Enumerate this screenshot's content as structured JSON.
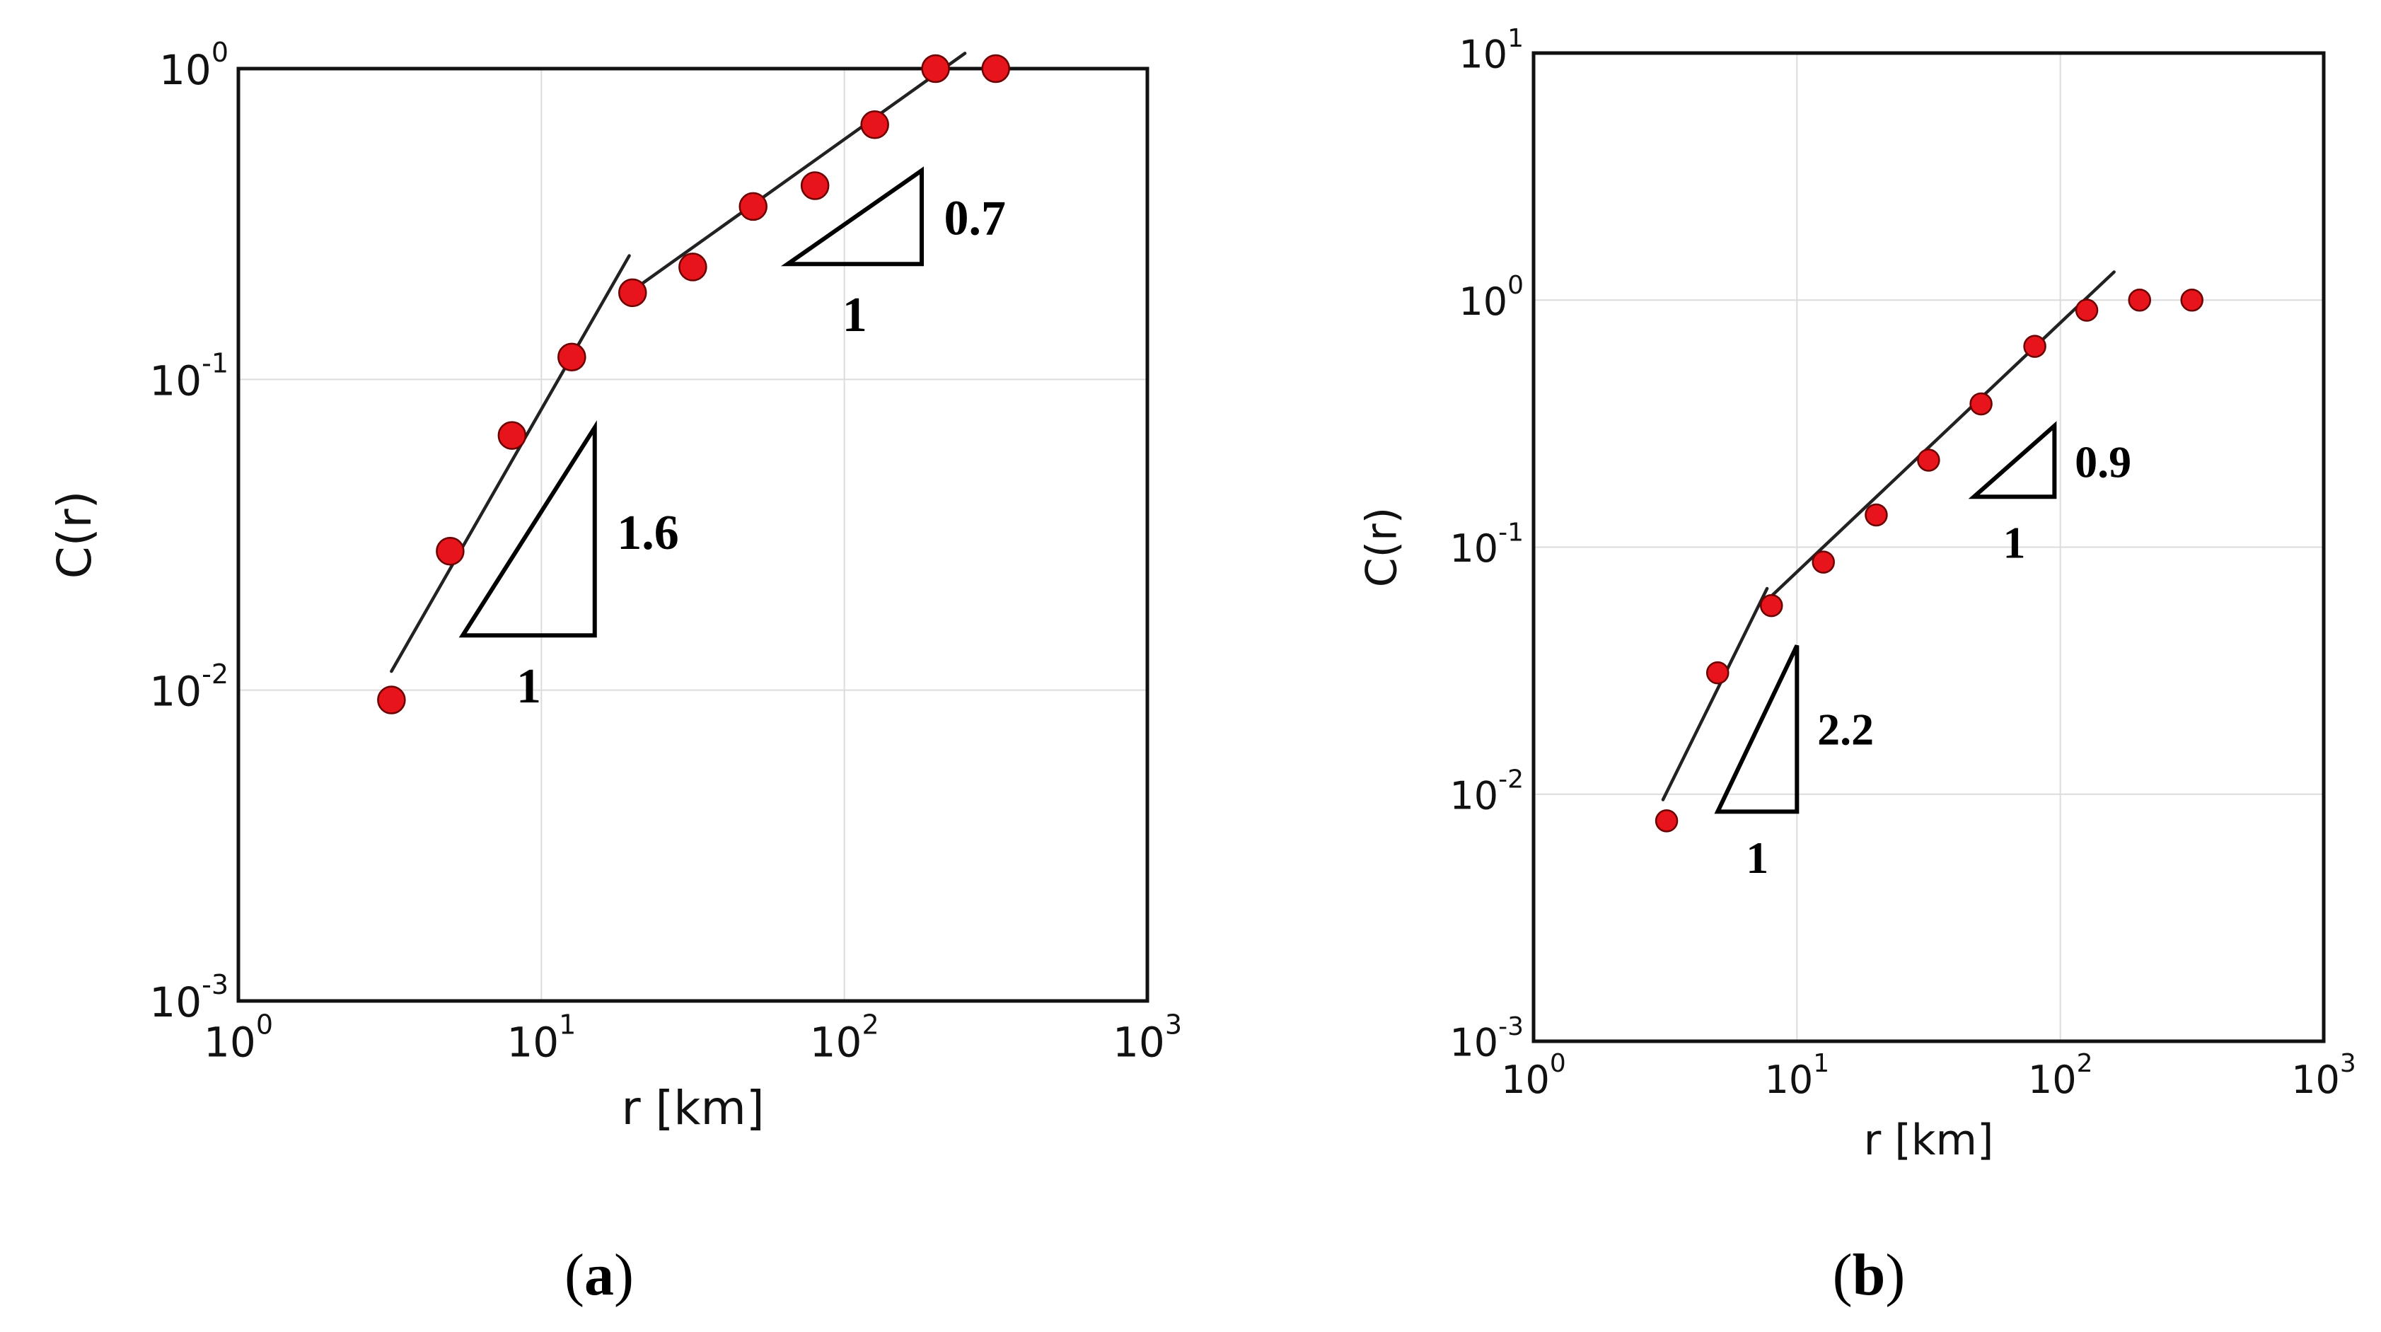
{
  "chart_data": [
    {
      "type": "scatter",
      "panel_label": "a",
      "xscale": "log",
      "yscale": "log",
      "xlabel": "r [km]",
      "ylabel": "C(r)",
      "xlim": [
        1,
        1000
      ],
      "ylim": [
        0.001,
        1
      ],
      "grid": true,
      "xticks": [
        {
          "value": 1,
          "base": "10",
          "exp": "0"
        },
        {
          "value": 10,
          "base": "10",
          "exp": "1"
        },
        {
          "value": 100,
          "base": "10",
          "exp": "2"
        },
        {
          "value": 1000,
          "base": "10",
          "exp": "3"
        }
      ],
      "yticks": [
        {
          "value": 0.001,
          "base": "10",
          "exp": "-3"
        },
        {
          "value": 0.01,
          "base": "10",
          "exp": "-2"
        },
        {
          "value": 0.1,
          "base": "10",
          "exp": "-1"
        },
        {
          "value": 1,
          "base": "10",
          "exp": "0"
        }
      ],
      "series": [
        {
          "name": "C(r)",
          "marker": "circle",
          "color": "#e8141b",
          "x": [
            3.2,
            5,
            8,
            12.6,
            20,
            31.6,
            50,
            80,
            126,
            200,
            316
          ],
          "y": [
            0.0093,
            0.028,
            0.066,
            0.118,
            0.19,
            0.23,
            0.36,
            0.42,
            0.66,
            1.0,
            1.0
          ]
        }
      ],
      "fit_lines": [
        {
          "slope": 1.6,
          "x": [
            3.2,
            19.5
          ],
          "y": [
            0.0115,
            0.25
          ]
        },
        {
          "slope": 0.7,
          "x": [
            19.5,
            250
          ],
          "y": [
            0.19,
            1.12
          ]
        }
      ],
      "slope_triangles": [
        {
          "rise_label": "1.6",
          "run_label": "1",
          "x": [
            5.5,
            15
          ],
          "y": [
            0.015,
            0.07
          ]
        },
        {
          "rise_label": "0.7",
          "run_label": "1",
          "x": [
            65,
            180
          ],
          "y": [
            0.235,
            0.47
          ]
        }
      ]
    },
    {
      "type": "scatter",
      "panel_label": "b",
      "xscale": "log",
      "yscale": "log",
      "xlabel": "r [km]",
      "ylabel": "C(r)",
      "xlim": [
        1,
        1000
      ],
      "ylim": [
        0.001,
        10
      ],
      "grid": true,
      "xticks": [
        {
          "value": 1,
          "base": "10",
          "exp": "0"
        },
        {
          "value": 10,
          "base": "10",
          "exp": "1"
        },
        {
          "value": 100,
          "base": "10",
          "exp": "2"
        },
        {
          "value": 1000,
          "base": "10",
          "exp": "3"
        }
      ],
      "yticks": [
        {
          "value": 0.001,
          "base": "10",
          "exp": "-3"
        },
        {
          "value": 0.01,
          "base": "10",
          "exp": "-2"
        },
        {
          "value": 0.1,
          "base": "10",
          "exp": "-1"
        },
        {
          "value": 1,
          "base": "10",
          "exp": "0"
        },
        {
          "value": 10,
          "base": "10",
          "exp": "1"
        }
      ],
      "series": [
        {
          "name": "C(r)",
          "marker": "circle",
          "color": "#e8141b",
          "x": [
            3.2,
            5,
            8,
            12.6,
            20,
            31.6,
            50,
            80,
            126,
            200,
            316
          ],
          "y": [
            0.0078,
            0.031,
            0.058,
            0.087,
            0.135,
            0.225,
            0.38,
            0.65,
            0.91,
            1.0,
            1.0
          ]
        }
      ],
      "fit_lines": [
        {
          "slope": 2.2,
          "x": [
            3.1,
            7.7
          ],
          "y": [
            0.0095,
            0.068
          ]
        },
        {
          "slope": 0.9,
          "x": [
            7.7,
            160
          ],
          "y": [
            0.061,
            1.3
          ]
        }
      ],
      "slope_triangles": [
        {
          "rise_label": "2.2",
          "run_label": "1",
          "x": [
            5,
            10
          ],
          "y": [
            0.0085,
            0.04
          ]
        },
        {
          "rise_label": "0.9",
          "run_label": "1",
          "x": [
            47,
            95
          ],
          "y": [
            0.16,
            0.31
          ]
        }
      ]
    }
  ]
}
